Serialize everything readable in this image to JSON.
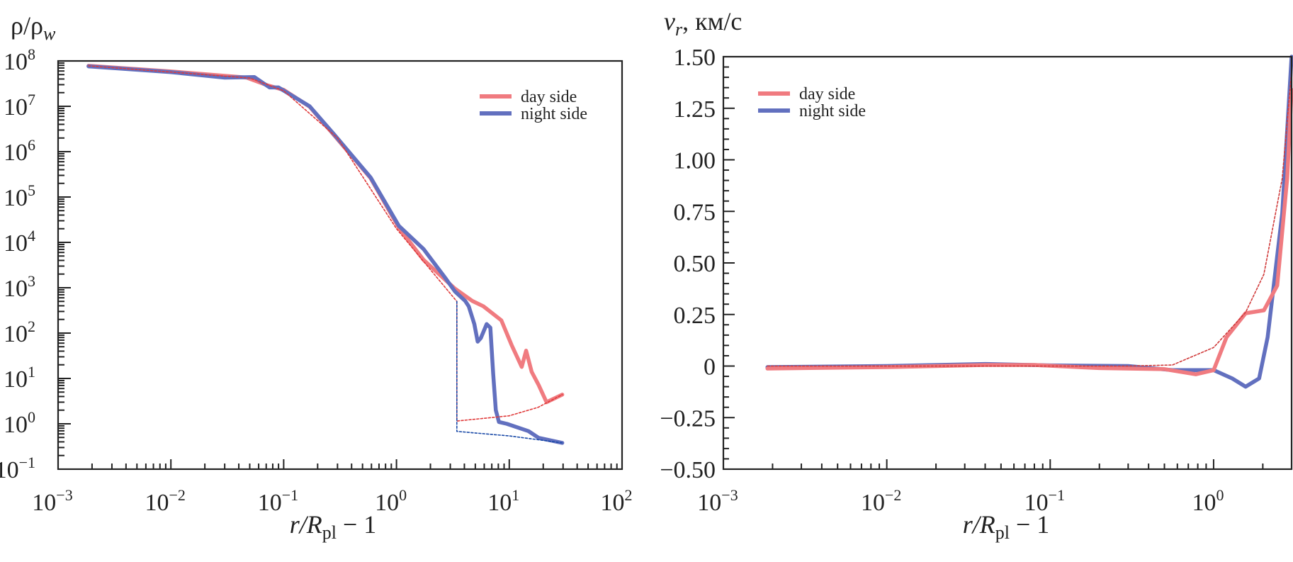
{
  "chart_data": [
    {
      "type": "line",
      "ylabel": {
        "main": "ρ/ρ",
        "sub": "w"
      },
      "xlabel": {
        "italic": "r/R",
        "sub": "pl",
        "rest": " − 1"
      },
      "xscale": "log",
      "yscale": "log",
      "xlim": [
        0.001,
        100
      ],
      "ylim": [
        0.1,
        100000000
      ],
      "grid": false,
      "legend_placement": "top-right",
      "xticks": [
        {
          "base": "10",
          "exp": "−3"
        },
        {
          "base": "10",
          "exp": "−2"
        },
        {
          "base": "10",
          "exp": "−1"
        },
        {
          "base": "10",
          "exp": "0"
        },
        {
          "base": "10",
          "exp": "1"
        },
        {
          "base": "10",
          "exp": "2"
        }
      ],
      "xtick_values": [
        0.001,
        0.01,
        0.1,
        1,
        10,
        100
      ],
      "yticks": [
        {
          "base": "10",
          "exp": "8"
        },
        {
          "base": "10",
          "exp": "7"
        },
        {
          "base": "10",
          "exp": "6"
        },
        {
          "base": "10",
          "exp": "5"
        },
        {
          "base": "10",
          "exp": "4"
        },
        {
          "base": "10",
          "exp": "3"
        },
        {
          "base": "10",
          "exp": "2"
        },
        {
          "base": "10",
          "exp": "1"
        },
        {
          "base": "10",
          "exp": "0"
        },
        {
          "base": "10",
          "exp": "−1"
        }
      ],
      "ytick_values": [
        100000000,
        10000000,
        1000000,
        100000,
        10000,
        1000,
        100,
        10,
        1,
        0.1
      ],
      "series": [
        {
          "name": "day side",
          "color": "#f07b80",
          "style": "solid",
          "legend": true,
          "points": [
            [
              0.00186,
              78000000.0
            ],
            [
              0.0098,
              59000000.0
            ],
            [
              0.047,
              43000000.0
            ],
            [
              0.072,
              29000000.0
            ],
            [
              0.1,
              23000000.0
            ],
            [
              0.17,
              9800000.0
            ],
            [
              0.28,
              2300000.0
            ],
            [
              0.59,
              260000.0
            ],
            [
              1.05,
              21000.0
            ],
            [
              1.74,
              4100.0
            ],
            [
              3.3,
              955
            ],
            [
              4.7,
              513
            ],
            [
              5.9,
              389
            ],
            [
              8.5,
              191
            ],
            [
              10.5,
              54
            ],
            [
              12.9,
              18
            ],
            [
              14.1,
              41
            ],
            [
              15.8,
              14
            ],
            [
              18.2,
              7.2
            ],
            [
              21.4,
              3.0
            ],
            [
              29.5,
              4.4
            ]
          ]
        },
        {
          "name": "night side",
          "color": "#6270bf",
          "style": "solid",
          "legend": true,
          "points": [
            [
              0.00186,
              76000000.0
            ],
            [
              0.0098,
              57000000.0
            ],
            [
              0.03,
              43000000.0
            ],
            [
              0.055,
              44000000.0
            ],
            [
              0.075,
              26000000.0
            ],
            [
              0.09,
              26000000.0
            ],
            [
              0.17,
              10000000.0
            ],
            [
              0.28,
              2400000.0
            ],
            [
              0.59,
              270000.0
            ],
            [
              1.05,
              23000.0
            ],
            [
              1.74,
              7100.0
            ],
            [
              2.7,
              1660
            ],
            [
              3.3,
              830
            ],
            [
              4.07,
              513
            ],
            [
              4.37,
              389
            ],
            [
              4.9,
              158
            ],
            [
              5.25,
              65
            ],
            [
              5.6,
              78
            ],
            [
              6.3,
              158
            ],
            [
              6.8,
              132
            ],
            [
              7.2,
              12.6
            ],
            [
              7.6,
              2.0
            ],
            [
              8.1,
              1.1
            ],
            [
              9.5,
              1.0
            ],
            [
              14.8,
              0.69
            ],
            [
              18.2,
              0.49
            ],
            [
              29.5,
              0.38
            ]
          ]
        },
        {
          "color": "#e03a3a",
          "style": "dashed",
          "legend": false,
          "points": [
            [
              0.00186,
              78000000.0
            ],
            [
              0.05,
              42000000.0
            ],
            [
              0.1,
              22000000.0
            ],
            [
              0.3,
              2000000.0
            ],
            [
              1,
              20000.0
            ],
            [
              2,
              2500.0
            ],
            [
              3.43,
              500
            ],
            [
              3.43,
              1.15
            ],
            [
              10,
              1.5
            ],
            [
              18,
              2.3
            ],
            [
              29.5,
              4.4
            ]
          ]
        },
        {
          "color": "#1a4aa8",
          "style": "dashed",
          "legend": false,
          "points": [
            [
              3.43,
              500
            ],
            [
              3.43,
              0.68
            ],
            [
              10,
              0.54
            ],
            [
              29.5,
              0.38
            ]
          ]
        }
      ]
    },
    {
      "type": "line",
      "ylabel": {
        "italic": "v",
        "sub": "r",
        "rest": ", км/с"
      },
      "xlabel": {
        "italic": "r/R",
        "sub": "pl",
        "rest": " − 1"
      },
      "xscale": "log",
      "yscale": "linear",
      "xlim": [
        0.001,
        3
      ],
      "ylim": [
        -0.5,
        1.5
      ],
      "grid": false,
      "legend_placement": "top-left",
      "xticks": [
        {
          "base": "10",
          "exp": "−3"
        },
        {
          "base": "10",
          "exp": "−2"
        },
        {
          "base": "10",
          "exp": "−1"
        },
        {
          "base": "10",
          "exp": "0"
        }
      ],
      "xtick_values": [
        0.001,
        0.01,
        0.1,
        1
      ],
      "yticks": [
        "1.50",
        "1.25",
        "1.00",
        "0.75",
        "0.50",
        "0.25",
        "0",
        "−0.25",
        "−0.50"
      ],
      "ytick_values": [
        1.5,
        1.25,
        1.0,
        0.75,
        0.5,
        0.25,
        0,
        -0.25,
        -0.5
      ],
      "series": [
        {
          "name": "night side",
          "color": "#6270bf",
          "style": "solid",
          "legend": true,
          "points": [
            [
              0.00186,
              -0.005
            ],
            [
              0.01,
              0
            ],
            [
              0.04,
              0.01
            ],
            [
              0.1,
              0.003
            ],
            [
              0.3,
              0
            ],
            [
              0.56,
              -0.02
            ],
            [
              1.0,
              -0.02
            ],
            [
              1.3,
              -0.06
            ],
            [
              1.57,
              -0.1
            ],
            [
              1.9,
              -0.06
            ],
            [
              2.14,
              0.14
            ],
            [
              2.63,
              0.74
            ],
            [
              3.0,
              1.5
            ]
          ]
        },
        {
          "name": "day side",
          "color": "#f07b80",
          "style": "solid",
          "legend": true,
          "points": [
            [
              0.00186,
              -0.012
            ],
            [
              0.01,
              -0.005
            ],
            [
              0.04,
              0.005
            ],
            [
              0.08,
              0.005
            ],
            [
              0.2,
              -0.01
            ],
            [
              0.5,
              -0.015
            ],
            [
              0.78,
              -0.04
            ],
            [
              1.0,
              -0.02
            ],
            [
              1.2,
              0.14
            ],
            [
              1.57,
              0.256
            ],
            [
              2.03,
              0.27
            ],
            [
              2.45,
              0.39
            ],
            [
              2.82,
              0.91
            ],
            [
              3.0,
              1.34
            ]
          ]
        },
        {
          "color": "#d03a3a",
          "style": "dashed",
          "legend": false,
          "points": [
            [
              0.00186,
              0
            ],
            [
              0.3,
              0
            ],
            [
              0.56,
              0.005
            ],
            [
              1.0,
              0.09
            ],
            [
              1.57,
              0.26
            ],
            [
              2.03,
              0.445
            ],
            [
              2.63,
              0.91
            ],
            [
              3.0,
              1.43
            ]
          ]
        }
      ]
    }
  ]
}
